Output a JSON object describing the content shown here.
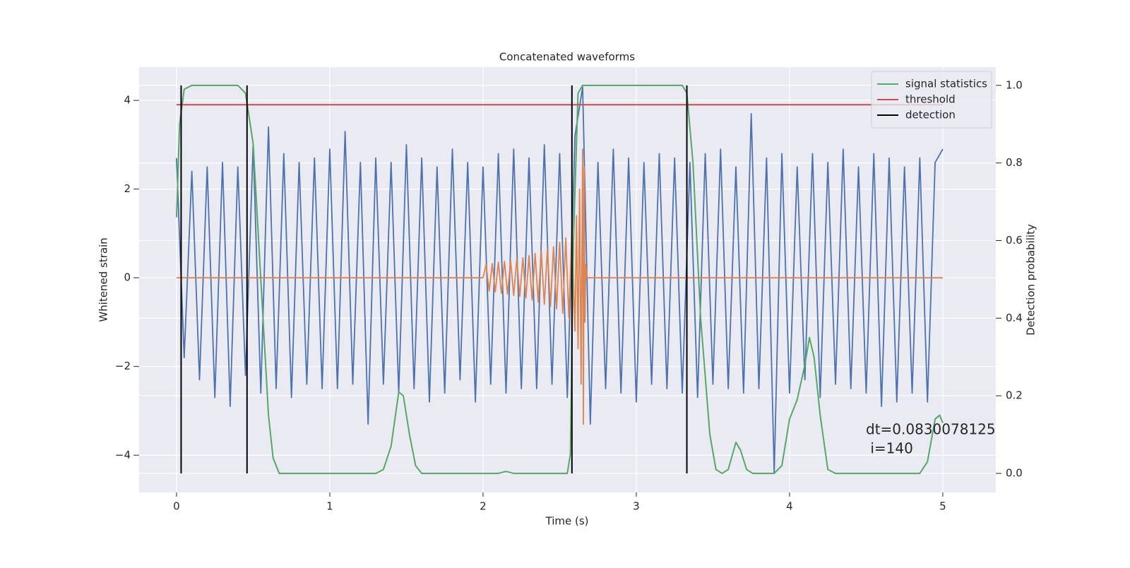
{
  "chart_data": {
    "type": "line",
    "title": "Concatenated waveforms",
    "xlabel": "Time (s)",
    "ylabel": "Whitened strain",
    "y2label": "Detection probability",
    "xlim": [
      -0.244,
      5.346
    ],
    "ylim": [
      -4.84,
      4.75
    ],
    "y2lim": [
      -0.049,
      1.047
    ],
    "xticks": [
      0,
      1,
      2,
      3,
      4,
      5
    ],
    "yticks": [
      {
        "value": -4,
        "label": "−4"
      },
      {
        "value": -2,
        "label": "−2"
      },
      0,
      2,
      4
    ],
    "y2ticks": [
      {
        "value": 0,
        "label": "0.0"
      },
      0.2,
      0.4,
      0.6,
      0.8,
      {
        "value": 1,
        "label": "1.0"
      }
    ],
    "grid": true,
    "legend": "upper right",
    "annotation": [
      "dt=0.0830078125",
      " i=140"
    ],
    "series": [
      {
        "color": "#4c72b0",
        "axis": "y",
        "x": [
          0,
          0.05,
          0.1,
          0.15,
          0.2,
          0.25,
          0.3,
          0.35,
          0.4,
          0.45,
          0.5,
          0.55,
          0.6,
          0.65,
          0.7,
          0.75,
          0.8,
          0.85,
          0.9,
          0.95,
          1,
          1.05,
          1.1,
          1.15,
          1.2,
          1.25,
          1.3,
          1.35,
          1.4,
          1.45,
          1.5,
          1.55,
          1.6,
          1.65,
          1.7,
          1.75,
          1.8,
          1.85,
          1.9,
          1.95,
          2,
          2.05,
          2.1,
          2.15,
          2.2,
          2.25,
          2.3,
          2.35,
          2.4,
          2.45,
          2.5,
          2.55,
          2.6,
          2.65,
          2.7,
          2.75,
          2.8,
          2.85,
          2.9,
          2.95,
          3,
          3.05,
          3.1,
          3.15,
          3.2,
          3.25,
          3.3,
          3.35,
          3.4,
          3.45,
          3.5,
          3.55,
          3.6,
          3.65,
          3.7,
          3.75,
          3.8,
          3.85,
          3.9,
          3.95,
          4,
          4.05,
          4.1,
          4.15,
          4.2,
          4.25,
          4.3,
          4.35,
          4.4,
          4.45,
          4.5,
          4.55,
          4.6,
          4.65,
          4.7,
          4.75,
          4.8,
          4.85,
          4.9,
          4.95,
          5
        ],
        "values": [
          2.7,
          -1.8,
          2.4,
          -2.3,
          2.5,
          -2.7,
          2.6,
          -2.9,
          2.5,
          -2.2,
          3.0,
          -2.6,
          3.4,
          -2.5,
          2.8,
          -2.7,
          2.6,
          -2.4,
          2.7,
          -2.5,
          2.9,
          -2.5,
          3.3,
          -2.4,
          2.6,
          -3.3,
          2.7,
          -2.4,
          2.6,
          -2.6,
          3.0,
          -2.5,
          2.7,
          -2.8,
          2.5,
          -2.6,
          2.9,
          -2.3,
          2.6,
          -2.8,
          2.5,
          -2.4,
          2.8,
          -2.6,
          2.9,
          -2.5,
          2.7,
          -2.5,
          3.0,
          -2.4,
          2.8,
          -2.7,
          3.2,
          4.3,
          -3.3,
          2.6,
          -2.5,
          2.9,
          -2.6,
          2.7,
          -2.8,
          2.6,
          -2.4,
          2.8,
          -2.5,
          2.7,
          -2.6,
          2.6,
          -2.7,
          2.8,
          -2.4,
          2.9,
          -2.5,
          2.5,
          -2.6,
          3.7,
          -2.5,
          2.7,
          -4.4,
          2.8,
          -2.6,
          2.5,
          -2.3,
          2.8,
          -2.7,
          2.6,
          -2.4,
          2.9,
          -2.5,
          2.5,
          -2.6,
          2.8,
          -2.9,
          2.7,
          -2.8,
          2.5,
          -2.6,
          2.7,
          -2.8,
          2.6,
          2.9
        ]
      },
      {
        "color": "#dd8452",
        "axis": "y",
        "x": [
          0,
          2,
          2.02,
          2.04,
          2.06,
          2.08,
          2.1,
          2.12,
          2.14,
          2.16,
          2.18,
          2.2,
          2.22,
          2.24,
          2.26,
          2.28,
          2.3,
          2.32,
          2.34,
          2.36,
          2.38,
          2.4,
          2.42,
          2.44,
          2.46,
          2.48,
          2.5,
          2.52,
          2.54,
          2.56,
          2.58,
          2.6,
          2.61,
          2.62,
          2.63,
          2.64,
          2.65,
          2.655,
          2.66,
          2.665,
          2.67,
          2.68,
          5
        ],
        "values": [
          0,
          0,
          0.3,
          -0.3,
          0.32,
          -0.32,
          0.35,
          -0.35,
          0.37,
          -0.37,
          0.4,
          -0.4,
          0.42,
          -0.42,
          0.45,
          -0.45,
          0.5,
          -0.5,
          0.55,
          -0.55,
          0.6,
          -0.6,
          0.65,
          -0.65,
          0.7,
          -0.7,
          0.8,
          -0.8,
          0.9,
          -0.9,
          1.1,
          -1.2,
          1.4,
          -1.6,
          2.0,
          -2.4,
          2.9,
          -3.3,
          2.5,
          -1.0,
          0.3,
          0,
          0
        ]
      },
      {
        "name": "signal statistics",
        "color": "#55a868",
        "axis": "y2",
        "x": [
          0,
          0.02,
          0.05,
          0.1,
          0.4,
          0.45,
          0.5,
          0.55,
          0.6,
          0.63,
          0.67,
          1.3,
          1.35,
          1.4,
          1.45,
          1.48,
          1.52,
          1.56,
          1.6,
          2.1,
          2.15,
          2.2,
          2.55,
          2.57,
          2.59,
          2.62,
          2.65,
          3.3,
          3.33,
          3.37,
          3.42,
          3.48,
          3.52,
          3.56,
          3.6,
          3.65,
          3.68,
          3.72,
          3.76,
          3.9,
          3.95,
          4,
          4.05,
          4.1,
          4.13,
          4.16,
          4.2,
          4.25,
          4.3,
          4.85,
          4.9,
          4.95,
          4.98,
          5
        ],
        "values": [
          0.66,
          0.9,
          0.99,
          1.0,
          1.0,
          0.98,
          0.85,
          0.5,
          0.15,
          0.04,
          0.0,
          0.0,
          0.01,
          0.07,
          0.21,
          0.2,
          0.1,
          0.02,
          0.0,
          0.0,
          0.005,
          0.0,
          0.0,
          0.05,
          0.6,
          0.98,
          1.0,
          1.0,
          0.98,
          0.8,
          0.4,
          0.1,
          0.01,
          0.0,
          0.01,
          0.08,
          0.06,
          0.01,
          0.0,
          0.0,
          0.02,
          0.14,
          0.19,
          0.28,
          0.35,
          0.3,
          0.15,
          0.01,
          0.0,
          0.0,
          0.03,
          0.14,
          0.15,
          0.13
        ]
      },
      {
        "name": "threshold",
        "color": "#c44e52",
        "axis": "y2",
        "x": [
          0,
          5
        ],
        "values": [
          0.95,
          0.95
        ]
      },
      {
        "name": "detection",
        "color": "#000000",
        "axis": "y2",
        "kind": "vline",
        "x": [
          0.03,
          0.46,
          2.58,
          3.33
        ],
        "ymin": 0,
        "ymax": 1
      }
    ]
  }
}
